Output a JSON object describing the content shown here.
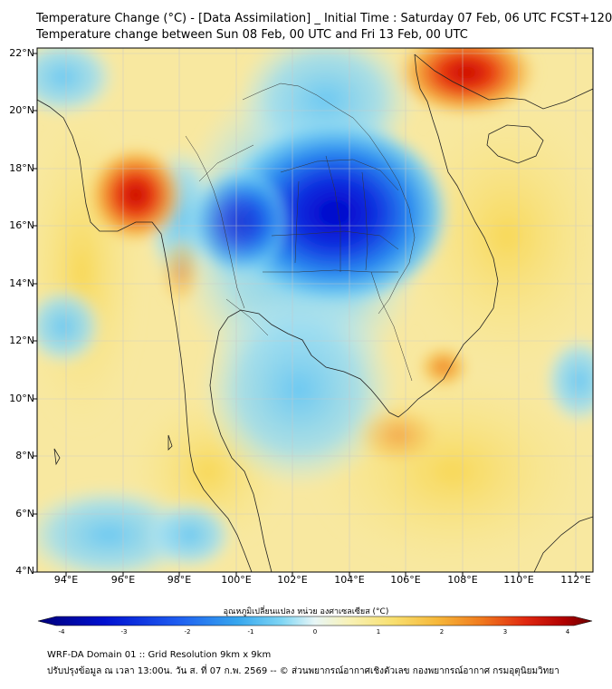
{
  "title_line1": "Temperature Change (°C) - [Data Assimilation] _ Initial Time : Saturday 07 Feb, 06 UTC FCST+120",
  "title_line2": "Temperature change between Sun 08 Feb, 00 UTC and Fri 13 Feb, 00 UTC",
  "lat_labels": [
    "22°N",
    "20°N",
    "18°N",
    "16°N",
    "14°N",
    "12°N",
    "10°N",
    "8°N",
    "6°N",
    "4°N"
  ],
  "lon_labels": [
    "94°E",
    "96°E",
    "98°E",
    "100°E",
    "102°E",
    "104°E",
    "106°E",
    "108°E",
    "110°E",
    "112°E"
  ],
  "colorbar": {
    "label": "อุณหภูมิเปลี่ยนแปลง หน่วย องศาเซลเซียส (°C)",
    "ticks": [
      "-4",
      "-3",
      "-2",
      "-1",
      "0",
      "1",
      "2",
      "3",
      "4"
    ],
    "min": -4,
    "max": 4,
    "colors": [
      "#00007a",
      "#0010d0",
      "#1e5cf0",
      "#36a6ee",
      "#7fd6f4",
      "#e8f6f6",
      "#f8f2b8",
      "#f8e070",
      "#f6b83a",
      "#f07a1e",
      "#e02810",
      "#b00000",
      "#6a0000"
    ]
  },
  "footer_line1": "WRF-DA Domain 01 :: Grid Resolution 9km x 9km",
  "footer_line2": "ปรับปรุงข้อมูล ณ เวลา 13:00น. วัน ส. ที่ 07 ก.พ. 2569 -- © ส่วนพยากรณ์อากาศเชิงตัวเลข กองพยากรณ์อากาศ กรมอุตุนิยมวิทยา"
}
